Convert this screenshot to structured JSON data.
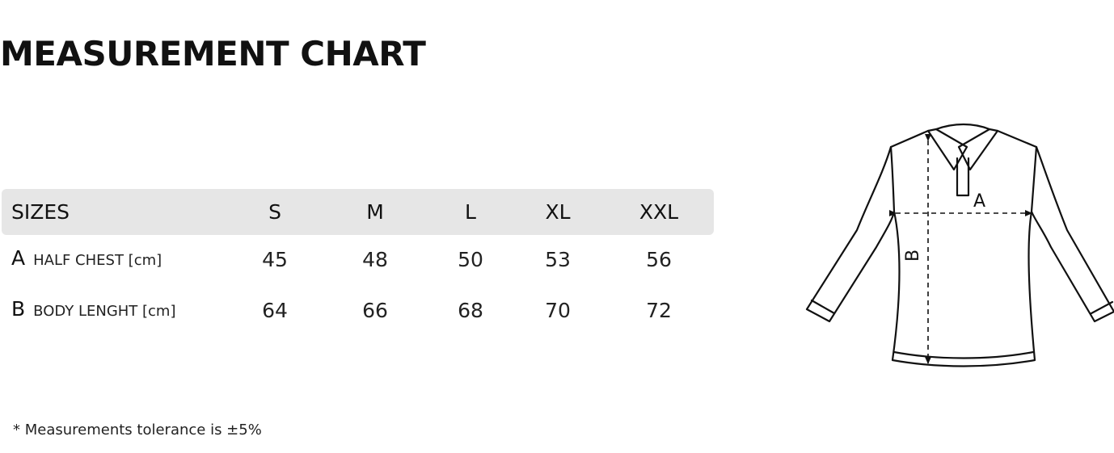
{
  "title": "MEASUREMENT CHART",
  "table": {
    "header_label": "SIZES",
    "sizes": [
      "S",
      "M",
      "L",
      "XL",
      "XXL"
    ],
    "rows": [
      {
        "letter": "A",
        "label": "HALF CHEST [cm]",
        "values": [
          "45",
          "48",
          "50",
          "53",
          "56"
        ]
      },
      {
        "letter": "B",
        "label": "BODY LENGHT [cm]",
        "values": [
          "64",
          "66",
          "68",
          "70",
          "72"
        ]
      }
    ]
  },
  "note": "* Measurements tolerance is ±5%",
  "diagram": {
    "label_a": "A",
    "label_b": "B"
  }
}
